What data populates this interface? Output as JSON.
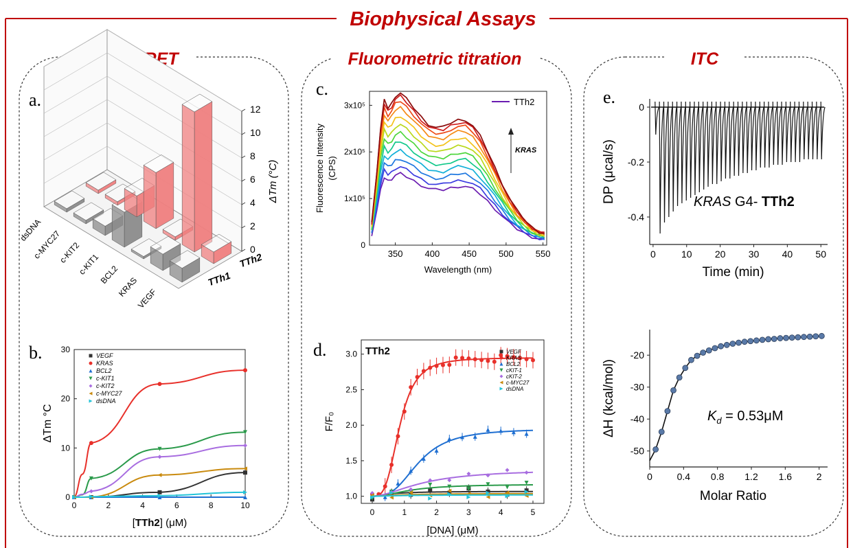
{
  "header": {
    "title": "Biophysical Assays"
  },
  "sections": [
    {
      "title": "FRET"
    },
    {
      "title": "Fluorometric titration"
    },
    {
      "title": "ITC"
    }
  ],
  "panel_labels": {
    "a": "a.",
    "b": "b.",
    "c": "c.",
    "d": "d.",
    "e": "e."
  },
  "colors": {
    "accent": "#c00000",
    "VEGF": "#333333",
    "KRAS": "#e8302a",
    "BCL2": "#1f6fd1",
    "cKIT1": "#2a9a4a",
    "cKIT2": "#a86de0",
    "cMYC27": "#c98a0e",
    "dsDNA": "#23c4d8",
    "bar_red": "#f08080",
    "bar_gray": "#8c8c8c",
    "itc_dot": "#5a7aa8"
  },
  "chart_data": [
    {
      "id": "a",
      "type": "bar",
      "title": "",
      "categories": [
        "VEGF",
        "KRAS",
        "BCL2",
        "c-KIT1",
        "c-KIT2",
        "c-MYC27",
        "dsDNA"
      ],
      "series": [
        {
          "name": "TTh2",
          "values": [
            1,
            12,
            0.3,
            4.8,
            1.8,
            0.3,
            0.3
          ]
        },
        {
          "name": "TTh1",
          "values": [
            1.2,
            1.4,
            0.2,
            3.0,
            0.8,
            0.3,
            0.3
          ]
        }
      ],
      "zlabel": "ΔTm (°C)",
      "zticks": [
        "0",
        "2",
        "4",
        "6",
        "8",
        "10",
        "12"
      ],
      "zlim": [
        0,
        12
      ]
    },
    {
      "id": "b",
      "type": "line",
      "xlabel_pre": "[",
      "xlabel_bold": "TTh2",
      "xlabel_post": "] (μM)",
      "ylabel": "ΔTm °C",
      "xlim": [
        0,
        10
      ],
      "ylim": [
        0,
        30
      ],
      "xticks": [
        "0",
        "2",
        "4",
        "6",
        "8",
        "10"
      ],
      "yticks": [
        "0",
        "10",
        "20",
        "30"
      ],
      "x": [
        0,
        0.5,
        1,
        5,
        10
      ],
      "series": [
        {
          "name": "VEGF",
          "values": [
            0,
            0,
            0,
            1,
            5
          ],
          "color": "#333333",
          "marker": "square"
        },
        {
          "name": "KRAS",
          "values": [
            0,
            4.7,
            11,
            23,
            25.8
          ],
          "color": "#e8302a",
          "marker": "circle"
        },
        {
          "name": "BCL2",
          "values": [
            0,
            0,
            0,
            0,
            0
          ],
          "color": "#1f6fd1",
          "marker": "triangle-up"
        },
        {
          "name": "c-KIT1",
          "values": [
            0,
            0.5,
            3.8,
            9.8,
            13.2
          ],
          "color": "#2a9a4a",
          "marker": "triangle-down"
        },
        {
          "name": "c-KIT2",
          "values": [
            0,
            0.6,
            1.2,
            8.2,
            10.5
          ],
          "color": "#a86de0",
          "marker": "diamond"
        },
        {
          "name": "c-MYC27",
          "values": [
            0,
            0,
            0,
            4.5,
            5.8
          ],
          "color": "#c98a0e",
          "marker": "triangle-left"
        },
        {
          "name": "dsDNA",
          "values": [
            0,
            0,
            0.1,
            0.3,
            1
          ],
          "color": "#23c4d8",
          "marker": "triangle-right"
        }
      ]
    },
    {
      "id": "c",
      "type": "line",
      "xlabel": "Wavelength (nm)",
      "ylabel_line1": "Fluorescence Intensity",
      "ylabel_line2": "(CPS)",
      "xlim": [
        315,
        555
      ],
      "ylim": [
        0,
        330000
      ],
      "xticks": [
        "350",
        "400",
        "450",
        "500",
        "550"
      ],
      "yticks": [
        "0",
        "1x10⁵",
        "2x10⁵",
        "3x10⁵"
      ],
      "legend": "TTh2",
      "annotation": "KRAS",
      "x": [
        318,
        325,
        330,
        335,
        340,
        345,
        350,
        357,
        365,
        375,
        385,
        395,
        405,
        415,
        425,
        435,
        445,
        455,
        465,
        475,
        485,
        495,
        505,
        515,
        525,
        535,
        545,
        552
      ],
      "base_profile": [
        0.15,
        0.5,
        0.78,
        0.97,
        0.92,
        0.95,
        1.0,
        1.02,
        0.98,
        0.92,
        0.86,
        0.81,
        0.79,
        0.79,
        0.82,
        0.84,
        0.84,
        0.8,
        0.73,
        0.63,
        0.52,
        0.41,
        0.31,
        0.23,
        0.17,
        0.12,
        0.09,
        0.08
      ],
      "scales": [
        150000,
        165000,
        182000,
        200000,
        218000,
        236000,
        254000,
        272000,
        290000,
        303000,
        313000,
        320000
      ],
      "series_colors": [
        "#6a1bb0",
        "#3b3be0",
        "#1f78e0",
        "#12b0d8",
        "#10c88a",
        "#4cd63a",
        "#b9d81a",
        "#f3c21a",
        "#f58a15",
        "#ee4a16",
        "#d01c1c",
        "#8b0c0c"
      ]
    },
    {
      "id": "d",
      "type": "line",
      "xlabel": "[DNA] (μM)",
      "ylabel": "F/F₀",
      "title": "TTh2",
      "xlim": [
        0,
        5
      ],
      "ylim": [
        0.9,
        3.2
      ],
      "xticks": [
        "0",
        "1",
        "2",
        "3",
        "4",
        "5"
      ],
      "yticks": [
        "1.0",
        "1.5",
        "2.0",
        "2.5",
        "3.0"
      ],
      "x": [
        0,
        0.2,
        0.4,
        0.6,
        0.8,
        1.0,
        1.2,
        1.4,
        1.6,
        1.8,
        2.0,
        2.2,
        2.4,
        2.6,
        2.8,
        3.0,
        3.2,
        3.4,
        3.6,
        3.8,
        4.0,
        4.2,
        4.4,
        4.6,
        4.8,
        5.0
      ],
      "series": [
        {
          "name": "VEGF",
          "color": "#333333",
          "marker": "square",
          "top": 1.07,
          "k": 0.6,
          "n": 1.5
        },
        {
          "name": "KRAS",
          "color": "#e8302a",
          "marker": "circle",
          "top": 2.95,
          "k": 0.85,
          "n": 3.4
        },
        {
          "name": "BCL2",
          "color": "#1f6fd1",
          "marker": "triangle-up",
          "top": 1.95,
          "k": 1.45,
          "n": 3.0
        },
        {
          "name": "cKIT-1",
          "color": "#2a9a4a",
          "marker": "triangle-down",
          "top": 1.17,
          "k": 1.2,
          "n": 2.0
        },
        {
          "name": "cKIT-2",
          "color": "#a86de0",
          "marker": "diamond",
          "top": 1.38,
          "k": 1.6,
          "n": 1.8
        },
        {
          "name": "c-MYC27",
          "color": "#c98a0e",
          "marker": "triangle-left",
          "top": 1.04,
          "k": 1.0,
          "n": 1.5
        },
        {
          "name": "dsDNA",
          "color": "#23c4d8",
          "marker": "triangle-right",
          "top": 1.02,
          "k": 1.0,
          "n": 1.5
        }
      ]
    },
    {
      "id": "e_top",
      "type": "line",
      "xlabel": "Time (min)",
      "ylabel": "DP (μcal/s)",
      "xlim": [
        -1,
        52
      ],
      "ylim": [
        -0.5,
        0.03
      ],
      "xticks": [
        "0",
        "10",
        "20",
        "30",
        "40",
        "50"
      ],
      "yticks": [
        "0",
        "-0.2",
        "-0.4"
      ],
      "annotation_italic": "KRAS",
      "annotation_plain": " G4- ",
      "annotation_bold": "TTh2",
      "injection_times": [
        0.8,
        2.1,
        3.4,
        4.7,
        6.0,
        7.3,
        8.6,
        9.9,
        11.2,
        12.5,
        13.8,
        15.1,
        16.4,
        17.7,
        19.0,
        20.3,
        21.6,
        22.9,
        24.2,
        25.5,
        26.8,
        28.1,
        29.4,
        30.7,
        32.0,
        33.3,
        34.6,
        35.9,
        37.2,
        38.5,
        39.8,
        41.1,
        42.4,
        43.7,
        45.0,
        46.3,
        47.6,
        48.9,
        50.2
      ],
      "peaks": [
        -0.1,
        -0.46,
        -0.42,
        -0.4,
        -0.38,
        -0.36,
        -0.35,
        -0.34,
        -0.33,
        -0.32,
        -0.31,
        -0.3,
        -0.29,
        -0.28,
        -0.28,
        -0.27,
        -0.26,
        -0.26,
        -0.25,
        -0.25,
        -0.24,
        -0.24,
        -0.23,
        -0.23,
        -0.22,
        -0.22,
        -0.22,
        -0.21,
        -0.21,
        -0.21,
        -0.2,
        -0.2,
        -0.2,
        -0.2,
        -0.19,
        -0.19,
        -0.19,
        -0.19,
        -0.19
      ]
    },
    {
      "id": "e_bottom",
      "type": "scatter",
      "xlabel": "Molar Ratio",
      "ylabel": "ΔH (kcal/mol)",
      "xlim": [
        0,
        2.1
      ],
      "ylim": [
        -55,
        -12
      ],
      "xticks": [
        "0",
        "0.4",
        "0.8",
        "1.2",
        "1.6",
        "2"
      ],
      "yticks": [
        "-20",
        "-30",
        "-40",
        "-50"
      ],
      "annotation_italic": "K",
      "annotation_sub": "d",
      "annotation_rest": " = 0.53μM",
      "x": [
        0.07,
        0.14,
        0.21,
        0.28,
        0.35,
        0.42,
        0.49,
        0.56,
        0.63,
        0.7,
        0.77,
        0.84,
        0.91,
        0.98,
        1.05,
        1.12,
        1.19,
        1.26,
        1.33,
        1.4,
        1.47,
        1.54,
        1.61,
        1.68,
        1.75,
        1.82,
        1.89,
        1.96,
        2.03
      ],
      "values": [
        -49.5,
        -44,
        -37.5,
        -31,
        -27,
        -24,
        -21.5,
        -20.2,
        -19.2,
        -18.5,
        -17.8,
        -17.2,
        -16.8,
        -16.4,
        -16.1,
        -15.8,
        -15.6,
        -15.4,
        -15.2,
        -15.0,
        -14.9,
        -14.7,
        -14.6,
        -14.5,
        -14.4,
        -14.3,
        -14.2,
        -14.1,
        -14.0
      ]
    }
  ]
}
